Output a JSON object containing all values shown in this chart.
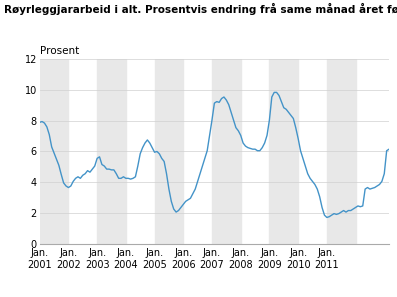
{
  "title": "Røyrleggjararbeid i alt. Prosentvis endring frå same månad året før",
  "ylabel": "Prosent",
  "line_color": "#4393c8",
  "bg_color": "#ffffff",
  "grid_color": "#d0d0d0",
  "band_color": "#e8e8e8",
  "ylim": [
    0,
    12
  ],
  "yticks": [
    0,
    2,
    4,
    6,
    8,
    10,
    12
  ],
  "x_labels": [
    "Jan.\n2001",
    "Jan.\n2002",
    "Jan.\n2003",
    "Jan.\n2004",
    "Jan.\n2005",
    "Jan.\n2006",
    "Jan.\n2007",
    "Jan.\n2008",
    "Jan.\n2009",
    "Jan.\n2010",
    "Jan.\n2011"
  ],
  "data": [
    7.9,
    7.95,
    7.85,
    7.6,
    7.1,
    6.3,
    5.9,
    5.5,
    5.1,
    4.5,
    3.95,
    3.75,
    3.65,
    3.75,
    4.05,
    4.25,
    4.35,
    4.25,
    4.45,
    4.55,
    4.75,
    4.65,
    4.85,
    5.05,
    5.55,
    5.65,
    5.15,
    5.05,
    4.85,
    4.85,
    4.8,
    4.8,
    4.55,
    4.25,
    4.25,
    4.35,
    4.25,
    4.25,
    4.2,
    4.25,
    4.35,
    5.05,
    5.85,
    6.25,
    6.55,
    6.75,
    6.55,
    6.25,
    5.95,
    6.0,
    5.85,
    5.55,
    5.35,
    4.55,
    3.55,
    2.75,
    2.25,
    2.05,
    2.15,
    2.35,
    2.55,
    2.75,
    2.85,
    2.95,
    3.25,
    3.55,
    4.05,
    4.55,
    5.05,
    5.55,
    6.05,
    7.05,
    8.05,
    9.15,
    9.25,
    9.2,
    9.45,
    9.55,
    9.35,
    9.05,
    8.55,
    8.05,
    7.55,
    7.35,
    7.05,
    6.55,
    6.35,
    6.25,
    6.2,
    6.15,
    6.15,
    6.05,
    6.05,
    6.25,
    6.55,
    7.05,
    8.05,
    9.55,
    9.85,
    9.85,
    9.65,
    9.25,
    8.85,
    8.75,
    8.55,
    8.35,
    8.15,
    7.55,
    6.85,
    6.05,
    5.55,
    5.05,
    4.55,
    4.25,
    4.05,
    3.85,
    3.55,
    3.05,
    2.35,
    1.85,
    1.7,
    1.75,
    1.85,
    1.95,
    1.9,
    1.95,
    2.05,
    2.15,
    2.05,
    2.15,
    2.15,
    2.25,
    2.35,
    2.45,
    2.4,
    2.45,
    3.55,
    3.65,
    3.55,
    3.6,
    3.65,
    3.75,
    3.85,
    4.05,
    4.55,
    6.05,
    6.15
  ]
}
